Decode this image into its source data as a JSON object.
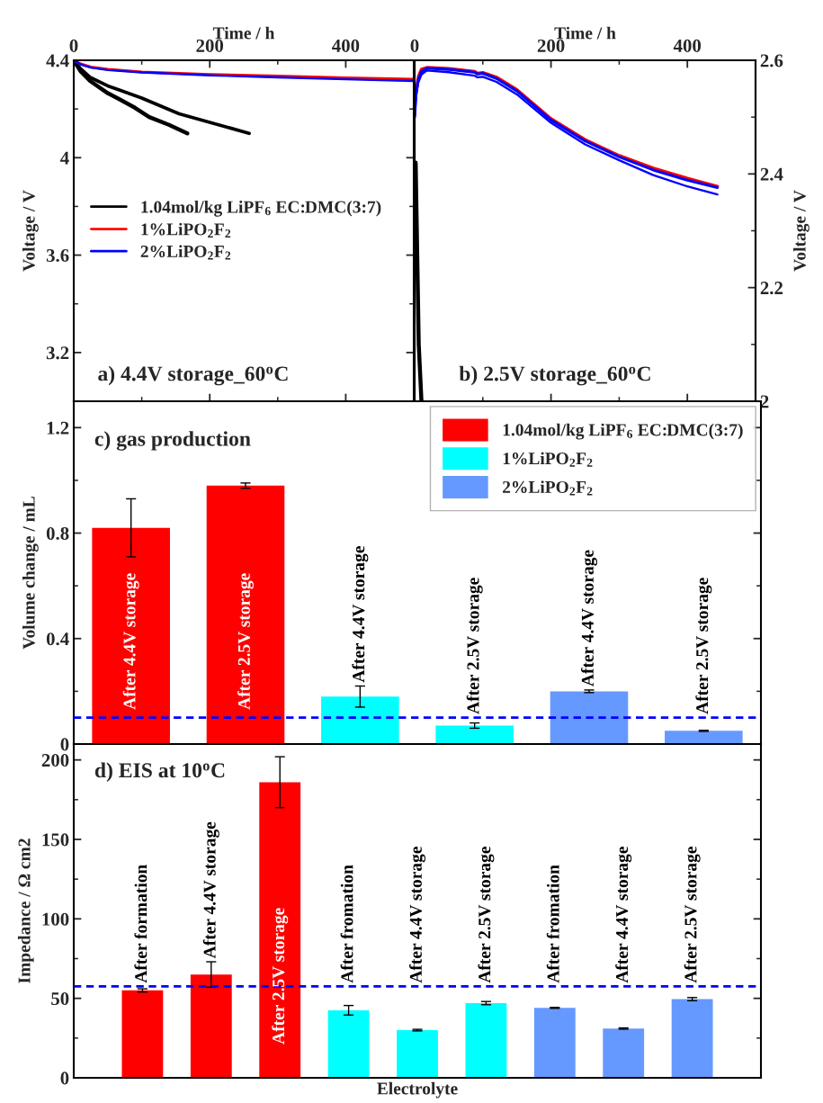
{
  "chart_data": [
    {
      "type": "line",
      "title": "a) 4.4V storage_60$^{o}$C",
      "xlabel": "Time / h",
      "ylabel": "Voltage / V",
      "xlim": [
        0,
        500
      ],
      "xticks": [
        0,
        200,
        400
      ],
      "ylim": [
        3.0,
        4.4
      ],
      "yticks": [
        3.2,
        3.6,
        4,
        4.4
      ],
      "legend": "left",
      "series": [
        {
          "name": "1.04mol/kg LiPF$_{6}$ EC:DMC(3:7)",
          "color": "#000000",
          "x": [
            0,
            10,
            24,
            50,
            67,
            90,
            111,
            140,
            167
          ],
          "values": [
            4.4,
            4.355,
            4.315,
            4.265,
            4.24,
            4.205,
            4.167,
            4.135,
            4.1
          ]
        },
        {
          "color": "#000000",
          "x": [
            0,
            10,
            24,
            50,
            67,
            100,
            155,
            200,
            258
          ],
          "values": [
            4.4,
            4.365,
            4.33,
            4.295,
            4.278,
            4.245,
            4.18,
            4.145,
            4.1
          ]
        },
        {
          "name": "1%LiPO$_{2}$F$_{2}$",
          "color": "#ff0000",
          "x": [
            0,
            10,
            25,
            50,
            100,
            200,
            300,
            400,
            500
          ],
          "values": [
            4.4,
            4.385,
            4.372,
            4.363,
            4.352,
            4.342,
            4.335,
            4.328,
            4.322
          ]
        },
        {
          "name": "2%LiPO$_{2}$F$_{2}$",
          "color": "#0000ff",
          "x": [
            0,
            10,
            25,
            50,
            100,
            200,
            300,
            400,
            500
          ],
          "values": [
            4.4,
            4.383,
            4.37,
            4.36,
            4.35,
            4.338,
            4.33,
            4.322,
            4.315
          ]
        }
      ]
    },
    {
      "type": "line",
      "title": "b) 2.5V storage_60$^{o}$C",
      "xlabel": "Time / h",
      "y2label": "Voltage / V",
      "xlim": [
        0,
        500
      ],
      "xticks": [
        0,
        200,
        400
      ],
      "y2lim": [
        2,
        2.6
      ],
      "y2ticks": [
        2,
        2.2,
        2.4,
        2.6
      ],
      "series": [
        {
          "color": "#000000",
          "axis": "y2",
          "x": [
            1.5,
            6,
            10
          ],
          "values": [
            2.42,
            2.1,
            2.0
          ]
        },
        {
          "color": "#ff0000",
          "axis": "y2",
          "x": [
            3,
            6,
            10,
            18,
            50,
            88,
            92,
            100,
            120,
            150,
            200,
            250,
            300,
            350,
            400,
            444
          ],
          "values": [
            2.552,
            2.572,
            2.584,
            2.587,
            2.585,
            2.58,
            2.577,
            2.578,
            2.57,
            2.548,
            2.497,
            2.46,
            2.432,
            2.41,
            2.392,
            2.378
          ]
        },
        {
          "color": "#0000ff",
          "axis": "y2",
          "x": [
            0,
            2,
            5,
            10,
            18,
            50,
            88,
            92,
            100,
            120,
            150,
            200,
            250,
            300,
            350,
            400,
            444
          ],
          "values": [
            2.5,
            2.54,
            2.565,
            2.58,
            2.586,
            2.584,
            2.579,
            2.576,
            2.577,
            2.568,
            2.546,
            2.495,
            2.458,
            2.43,
            2.407,
            2.389,
            2.376
          ]
        },
        {
          "color": "#0000ff",
          "axis": "y2",
          "x": [
            0,
            2,
            5,
            10,
            18,
            50,
            88,
            92,
            100,
            120,
            150,
            200,
            250,
            300,
            350,
            400,
            444
          ],
          "values": [
            2.5,
            2.535,
            2.56,
            2.575,
            2.582,
            2.579,
            2.573,
            2.57,
            2.571,
            2.562,
            2.54,
            2.49,
            2.452,
            2.424,
            2.398,
            2.378,
            2.364
          ]
        }
      ]
    },
    {
      "type": "bar",
      "title": "c) gas production",
      "ylabel": "Volume change / mL",
      "categories": [
        null,
        null,
        null,
        null,
        null,
        null
      ],
      "ylim": [
        0,
        1.3
      ],
      "yticks": [
        0,
        0.4,
        0.8,
        1.2
      ],
      "legend": "top right",
      "series": [
        {
          "name": "1.04mol/kg LiPF$_{6}$ EC:DMC(3:7)",
          "color": "#ff0000",
          "values": [
            0.82,
            0.98,
            null,
            null,
            null,
            null
          ],
          "errors": [
            0.11,
            0.01,
            null,
            null,
            null,
            null
          ]
        },
        {
          "name": "1%LiPO$_{2}$F$_{2}$",
          "color": "#00ffff",
          "values": [
            null,
            null,
            0.18,
            0.07,
            null,
            null
          ],
          "errors": [
            null,
            null,
            0.04,
            0.01,
            null,
            null
          ]
        },
        {
          "name": "2%LiPO$_{2}$F$_{2}$",
          "color": "#6699ff",
          "values": [
            null,
            null,
            null,
            null,
            0.2,
            0.05
          ],
          "errors": [
            null,
            null,
            null,
            null,
            0.005,
            0.002
          ]
        }
      ],
      "ref_lines": [
        {
          "axis": "y",
          "value": 0.1,
          "color": "#0000ff",
          "line_style": "dashed"
        }
      ],
      "annotations": [
        "After 4.4V storage",
        "After 2.5V storage",
        "After 4.4V storage",
        "After 2.5V storage",
        "After 4.4V storage",
        "After 2.5V storage"
      ]
    },
    {
      "type": "bar",
      "title": "d) EIS at 10$^{o}$C",
      "xlabel": "Electrolyte",
      "ylabel": "Impedance / Ω cm2",
      "categories": [
        null,
        null,
        null,
        null,
        null,
        null,
        null,
        null,
        null
      ],
      "ylim": [
        0,
        210
      ],
      "yticks": [
        0,
        50,
        100,
        150,
        200
      ],
      "values": [
        55,
        65,
        186,
        42.5,
        30,
        47,
        44,
        31,
        49.5
      ],
      "colors": [
        "#ff0000",
        "#ff0000",
        "#ff0000",
        "#00ffff",
        "#00ffff",
        "#00ffff",
        "#6699ff",
        "#6699ff",
        "#6699ff"
      ],
      "errors": [
        1,
        8,
        16,
        3,
        0.5,
        1,
        0.3,
        0.4,
        1
      ],
      "ref_lines": [
        {
          "axis": "y",
          "value": 57.5,
          "color": "#0000ff",
          "line_style": "dashed"
        }
      ],
      "annotations": [
        "After formation",
        "After 4.4V storage",
        "After 2.5V storage",
        "After fromation",
        "After 4.4V storage",
        "After 2.5V storage",
        "After fromation",
        "After 4.4V storage",
        "After 2.5V storage"
      ]
    }
  ]
}
